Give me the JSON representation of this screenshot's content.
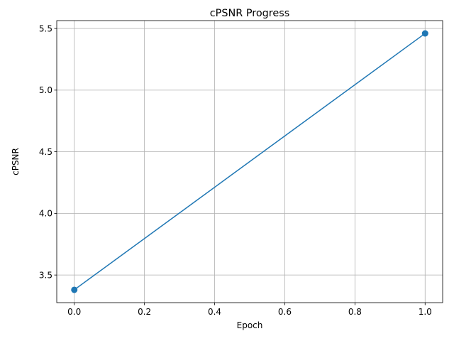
{
  "chart_data": {
    "type": "line",
    "title": "cPSNR Progress",
    "xlabel": "Epoch",
    "ylabel": "cPSNR",
    "x": [
      0,
      1
    ],
    "series": [
      {
        "values": [
          3.38,
          5.46
        ],
        "color": "#1f77b4",
        "marker": "circle"
      }
    ],
    "xlim": [
      -0.05,
      1.05
    ],
    "ylim": [
      3.276,
      5.564
    ],
    "xticks": [
      0.0,
      0.2,
      0.4,
      0.6,
      0.8,
      1.0
    ],
    "xtick_labels": [
      "0.0",
      "0.2",
      "0.4",
      "0.6",
      "0.8",
      "1.0"
    ],
    "yticks": [
      3.5,
      4.0,
      4.5,
      5.0,
      5.5
    ],
    "ytick_labels": [
      "3.5",
      "4.0",
      "4.5",
      "5.0",
      "5.5"
    ],
    "grid": true,
    "legend": "none"
  }
}
